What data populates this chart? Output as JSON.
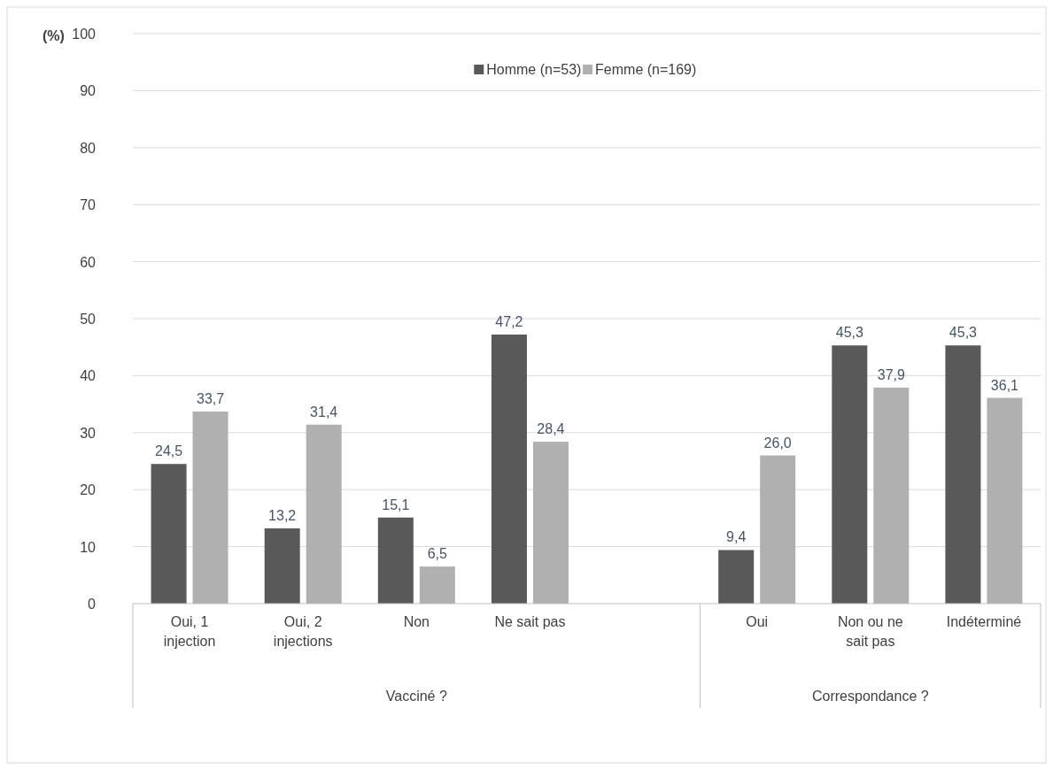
{
  "chart_data": {
    "type": "bar",
    "ylabel": "(%)",
    "categories": [
      "Oui, 1 injection",
      "Oui, 2 injections",
      "Non",
      "Ne sait pas",
      null,
      "Oui",
      "Non ou ne sait pas",
      "Indéterminé"
    ],
    "series": [
      {
        "name": "Homme (n=53)",
        "color": "#595959",
        "values": [
          24.5,
          13.2,
          15.1,
          47.2,
          null,
          9.4,
          45.3,
          45.3
        ]
      },
      {
        "name": "Femme (n=169)",
        "color": "#b0b0b0",
        "values": [
          33.7,
          31.4,
          6.5,
          28.4,
          null,
          26.0,
          37.9,
          36.1
        ]
      }
    ],
    "value_labels": [
      [
        "24,5",
        "13,2",
        "15,1",
        "47,2",
        null,
        "9,4",
        "45,3",
        "45,3"
      ],
      [
        "33,7",
        "31,4",
        "6,5",
        "28,4",
        null,
        "26,0",
        "37,9",
        "36,1"
      ]
    ],
    "annotations": [
      "Vacciné ?",
      "Correspondance ?"
    ],
    "ylim": [
      0,
      100
    ],
    "yticks": [
      0,
      10,
      20,
      30,
      40,
      50,
      60,
      70,
      80,
      90,
      100
    ],
    "grid": "y",
    "legend": "top"
  }
}
